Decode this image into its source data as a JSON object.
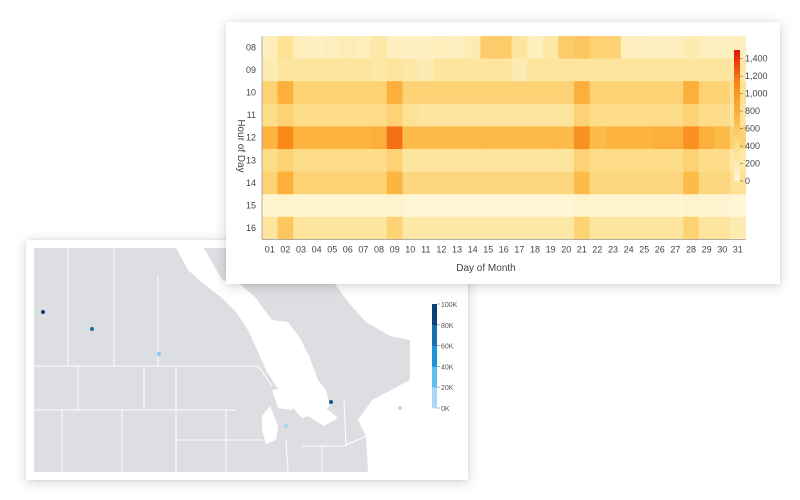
{
  "chart_data": [
    {
      "type": "heatmap",
      "xlabel": "Day of Month",
      "ylabel": "Hour of Day",
      "x": [
        "01",
        "02",
        "03",
        "04",
        "05",
        "06",
        "07",
        "08",
        "09",
        "10",
        "11",
        "12",
        "13",
        "14",
        "15",
        "16",
        "17",
        "18",
        "19",
        "20",
        "21",
        "22",
        "23",
        "24",
        "25",
        "26",
        "27",
        "28",
        "29",
        "30",
        "31"
      ],
      "y": [
        "08",
        "09",
        "10",
        "11",
        "12",
        "13",
        "14",
        "15",
        "16"
      ],
      "values": [
        [
          150,
          350,
          150,
          120,
          140,
          180,
          150,
          250,
          120,
          110,
          110,
          150,
          130,
          200,
          550,
          550,
          300,
          130,
          250,
          550,
          600,
          500,
          500,
          140,
          140,
          130,
          130,
          200,
          130,
          130,
          130
        ],
        [
          200,
          300,
          300,
          300,
          300,
          300,
          300,
          250,
          300,
          250,
          200,
          300,
          300,
          300,
          300,
          300,
          200,
          300,
          300,
          300,
          300,
          300,
          300,
          300,
          300,
          300,
          300,
          300,
          300,
          300,
          250
        ],
        [
          500,
          800,
          500,
          500,
          500,
          500,
          500,
          500,
          800,
          500,
          500,
          500,
          500,
          500,
          500,
          500,
          500,
          500,
          500,
          500,
          800,
          500,
          500,
          500,
          500,
          500,
          500,
          800,
          500,
          500,
          350
        ],
        [
          400,
          500,
          400,
          400,
          400,
          400,
          400,
          400,
          500,
          350,
          300,
          300,
          300,
          300,
          300,
          300,
          300,
          300,
          300,
          300,
          500,
          400,
          400,
          400,
          400,
          400,
          400,
          500,
          400,
          400,
          300
        ],
        [
          750,
          1100,
          750,
          750,
          750,
          750,
          750,
          800,
          1200,
          700,
          700,
          700,
          700,
          700,
          700,
          700,
          700,
          700,
          700,
          700,
          1050,
          700,
          750,
          750,
          750,
          800,
          800,
          1050,
          800,
          700,
          500
        ],
        [
          400,
          500,
          400,
          400,
          400,
          400,
          400,
          400,
          500,
          300,
          300,
          300,
          300,
          300,
          300,
          300,
          300,
          300,
          300,
          300,
          500,
          400,
          400,
          400,
          400,
          400,
          400,
          500,
          400,
          400,
          250
        ],
        [
          500,
          800,
          500,
          500,
          500,
          500,
          500,
          500,
          750,
          450,
          450,
          450,
          450,
          450,
          450,
          450,
          450,
          450,
          450,
          450,
          700,
          450,
          450,
          450,
          450,
          450,
          450,
          700,
          450,
          450,
          350
        ],
        [
          40,
          60,
          40,
          40,
          40,
          40,
          40,
          40,
          60,
          20,
          20,
          20,
          20,
          20,
          20,
          20,
          20,
          20,
          20,
          20,
          60,
          40,
          40,
          40,
          40,
          40,
          40,
          60,
          40,
          40,
          20
        ],
        [
          300,
          600,
          300,
          300,
          300,
          300,
          300,
          300,
          500,
          250,
          250,
          250,
          250,
          250,
          250,
          250,
          250,
          250,
          250,
          250,
          500,
          300,
          300,
          300,
          300,
          300,
          300,
          500,
          300,
          300,
          200
        ]
      ],
      "colorbar": {
        "ticks": [
          "0",
          "200",
          "400",
          "600",
          "800",
          "1,000",
          "1,200",
          "1,400"
        ],
        "range": [
          0,
          1500
        ],
        "colors": [
          "#fff7d9",
          "#fde08f",
          "#fdb53f",
          "#f98717",
          "#e3120b"
        ]
      }
    },
    {
      "type": "map",
      "region": "Northeastern North America",
      "legend": {
        "ticks": [
          "0K",
          "20K",
          "40K",
          "60K",
          "80K",
          "100K"
        ],
        "colors": [
          "#d3e9f7",
          "#a8d8f4",
          "#5cbdee",
          "#1c94d8",
          "#1a6fb0",
          "#0d3f78"
        ]
      },
      "points": [
        {
          "value": 100000
        },
        {
          "value": 80000
        },
        {
          "value": 30000
        },
        {
          "value": 90000
        },
        {
          "value": 20000
        },
        {
          "value": 15000
        }
      ],
      "colors": {
        "land": "#dcdee1",
        "water": "#ffffff",
        "border": "#ffffff"
      }
    }
  ]
}
